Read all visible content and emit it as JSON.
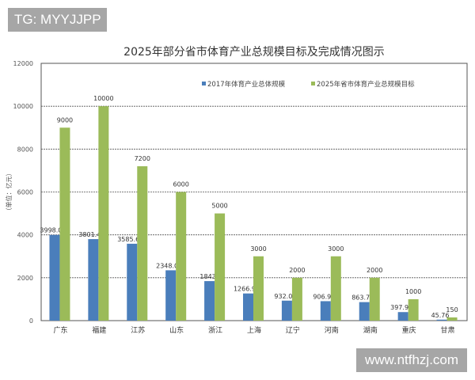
{
  "watermarks": {
    "top_left": "TG: MYYJJPP",
    "bottom_right": "www.ntfhzj.com"
  },
  "chart_data": {
    "type": "bar",
    "title": "2025年部分省市体育产业总规模目标及完成情况图示",
    "ylabel": "（单位：亿元）",
    "xlabel": "",
    "ylim": [
      0,
      12000
    ],
    "yticks": [
      0,
      2000,
      4000,
      6000,
      8000,
      10000,
      12000
    ],
    "grid": true,
    "legend_position": "top-right",
    "categories": [
      "广东",
      "福建",
      "江苏",
      "山东",
      "浙江",
      "上海",
      "辽宁",
      "河南",
      "湖南",
      "重庆",
      "甘肃"
    ],
    "series": [
      {
        "name": "2017年体育产业总体规模",
        "color": "#4a7ebb",
        "values": [
          3998.03,
          3801.41,
          3585.64,
          2348.01,
          1843,
          1266.93,
          932.09,
          906.99,
          863.74,
          397.91,
          45.76
        ],
        "labels": [
          "3998.03",
          "3801.41",
          "3585.64",
          "2348.01",
          "1843",
          "1266.93",
          "932.09",
          "906.99",
          "863.74",
          "397.91",
          "45.76"
        ]
      },
      {
        "name": "2025年省市体育产业总规模目标",
        "color": "#9bbb59",
        "values": [
          9000,
          10000,
          7200,
          6000,
          5000,
          3000,
          2000,
          3000,
          2000,
          1000,
          150
        ],
        "labels": [
          "9000",
          "10000",
          "7200",
          "6000",
          "5000",
          "3000",
          "2000",
          "3000",
          "2000",
          "1000",
          "150"
        ]
      }
    ]
  }
}
